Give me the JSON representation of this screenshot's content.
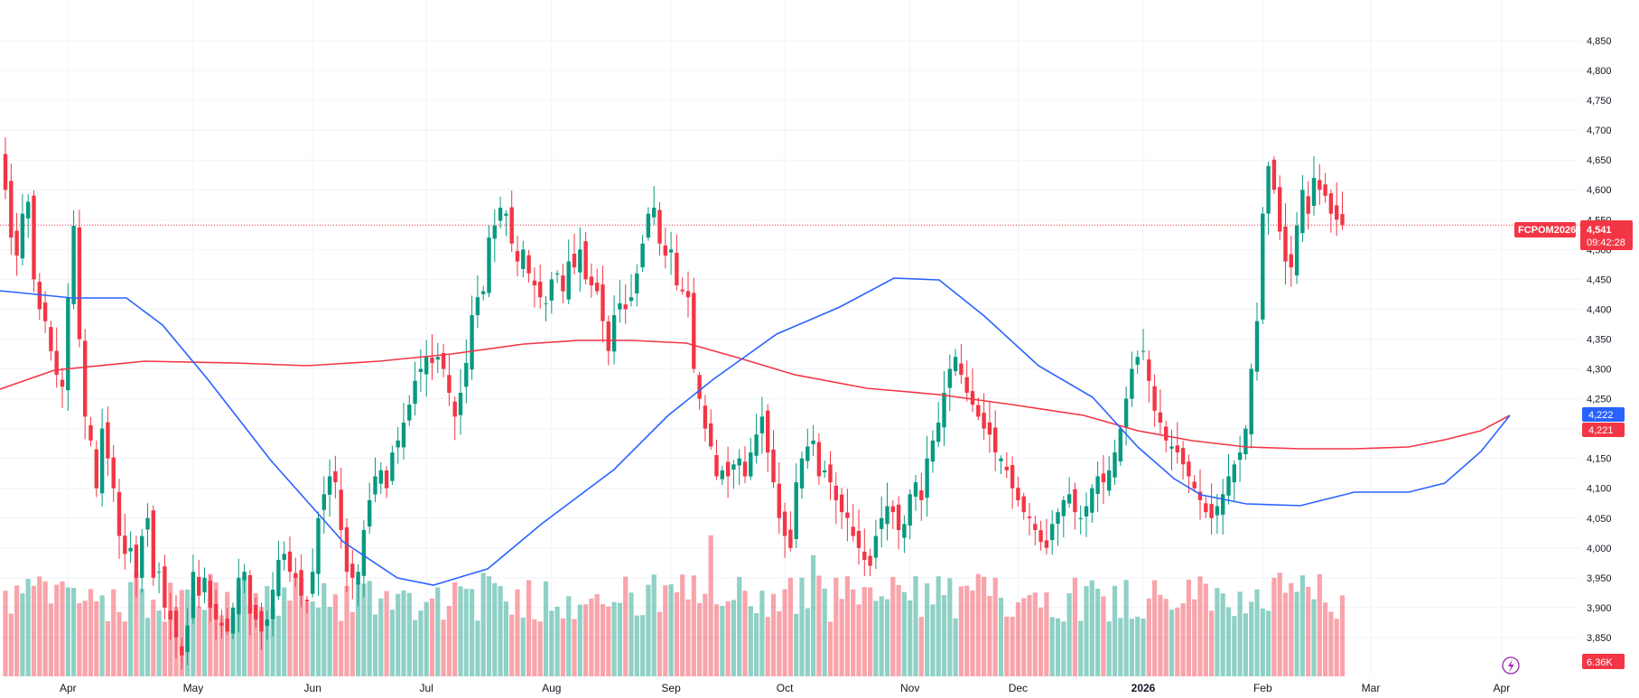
{
  "chart_data": {
    "type": "candlestick",
    "symbol": "FCPOM2026",
    "last_price": "4,541",
    "countdown": "09:42:28",
    "ma_fast_value": "4,222",
    "ma_slow_value": "4,221",
    "volume_label": "6.36K",
    "y_range": [
      3800,
      4880
    ],
    "y_ticks": [
      "4,850",
      "4,800",
      "4,750",
      "4,700",
      "4,650",
      "4,600",
      "4,550",
      "4,500",
      "4,450",
      "4,400",
      "4,350",
      "4,300",
      "4,250",
      "4,200",
      "4,150",
      "4,100",
      "4,050",
      "4,000",
      "3,950",
      "3,900",
      "3,850"
    ],
    "months": [
      {
        "label": "Apr",
        "index": 11,
        "bold": false
      },
      {
        "label": "May",
        "index": 33,
        "bold": false
      },
      {
        "label": "Jun",
        "index": 54,
        "bold": false
      },
      {
        "label": "Jul",
        "index": 74,
        "bold": false
      },
      {
        "label": "Aug",
        "index": 96,
        "bold": false
      },
      {
        "label": "Sep",
        "index": 117,
        "bold": false
      },
      {
        "label": "Oct",
        "index": 137,
        "bold": false
      },
      {
        "label": "Nov",
        "index": 159,
        "bold": false
      },
      {
        "label": "Dec",
        "index": 178,
        "bold": false
      },
      {
        "label": "2026",
        "index": 200,
        "bold": true
      },
      {
        "label": "Feb",
        "index": 221,
        "bold": false
      },
      {
        "label": "Mar",
        "index": 240,
        "bold": false
      },
      {
        "label": "Apr",
        "index": 263,
        "bold": false
      }
    ],
    "closes": [
      4600,
      4520,
      4490,
      4560,
      4580,
      4450,
      4400,
      4380,
      4330,
      4290,
      4270,
      4420,
      4540,
      4350,
      4220,
      4180,
      4100,
      4200,
      4150,
      4100,
      4020,
      3990,
      4000,
      3950,
      4020,
      4050,
      3950,
      3960,
      3900,
      3880,
      3850,
      3820,
      3870,
      3960,
      3920,
      3950,
      3900,
      3880,
      3870,
      3860,
      3900,
      3950,
      3960,
      3890,
      3880,
      3860,
      3880,
      3930,
      3980,
      3990,
      3960,
      3950,
      3920,
      3910,
      3960,
      4050,
      4090,
      4120,
      4110,
      4030,
      3960,
      3950,
      3960,
      4030,
      4080,
      4120,
      4130,
      4100,
      4160,
      4180,
      4210,
      4240,
      4280,
      4300,
      4320,
      4310,
      4320,
      4300,
      4260,
      4220,
      4260,
      4310,
      4390,
      4420,
      4430,
      4520,
      4540,
      4570,
      4560,
      4510,
      4480,
      4500,
      4460,
      4440,
      4420,
      4410,
      4450,
      4460,
      4430,
      4480,
      4470,
      4500,
      4450,
      4440,
      4430,
      4380,
      4330,
      4390,
      4410,
      4400,
      4420,
      4460,
      4510,
      4560,
      4570,
      4510,
      4490,
      4500,
      4440,
      4430,
      4420,
      4300,
      4250,
      4200,
      4170,
      4120,
      4130,
      4120,
      4140,
      4150,
      4120,
      4160,
      4190,
      4220,
      4160,
      4110,
      4050,
      4020,
      4000,
      4110,
      4150,
      4170,
      4180,
      4120,
      4130,
      4110,
      4080,
      4060,
      4050,
      4020,
      4000,
      3980,
      3970,
      4020,
      4050,
      4070,
      4060,
      4030,
      4040,
      4090,
      4110,
      4080,
      4150,
      4180,
      4210,
      4260,
      4300,
      4320,
      4290,
      4260,
      4240,
      4220,
      4200,
      4190,
      4160,
      4150,
      4130,
      4100,
      4080,
      4060,
      4050,
      4030,
      4010,
      4000,
      4040,
      4060,
      4080,
      4090,
      4060,
      4050,
      4070,
      4100,
      4120,
      4110,
      4130,
      4160,
      4200,
      4250,
      4300,
      4320,
      4330,
      4280,
      4230,
      4210,
      4180,
      4170,
      4160,
      4140,
      4120,
      4100,
      4080,
      4060,
      4050,
      4070,
      4090,
      4120,
      4140,
      4160,
      4200,
      4300,
      4380,
      4560,
      4640,
      4600,
      4530,
      4480,
      4470,
      4540,
      4600,
      4560,
      4620,
      4600,
      4590,
      4560,
      4550,
      4541
    ]
  }
}
